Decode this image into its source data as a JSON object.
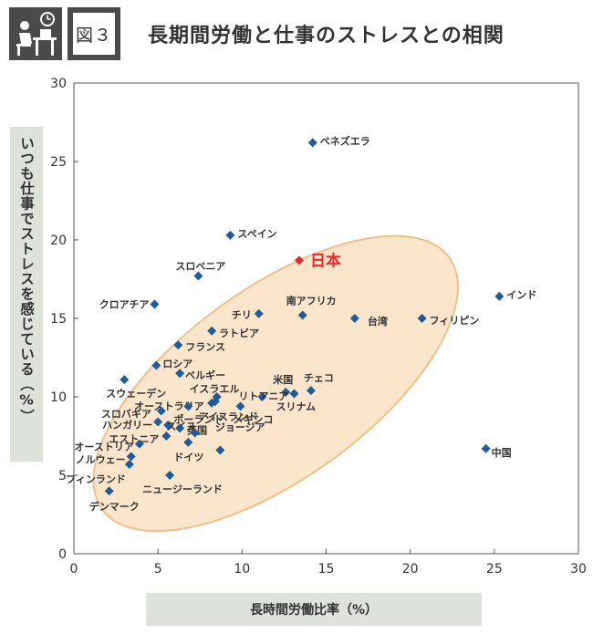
{
  "header": {
    "figure_label": "図３",
    "title": "長期間労働と仕事のストレスとの相関",
    "icon": "desk-worker-clock-icon"
  },
  "colors": {
    "marker": "#1e5c9b",
    "highlight": "#e32b2b",
    "ellipse_fill": "#fbe3c6",
    "ellipse_stroke": "#eec08a",
    "label_box": "#dde2db"
  },
  "chart_data": {
    "type": "scatter",
    "title": "長期間労働と仕事のストレスとの相関",
    "xlabel": "長時間労働比率（%）",
    "ylabel": "いつも仕事でストレスを感じている（%）",
    "xlim": [
      0,
      30
    ],
    "ylim": [
      0,
      30
    ],
    "xticks": [
      0,
      5,
      10,
      15,
      20,
      25,
      30
    ],
    "yticks": [
      0,
      5,
      10,
      15,
      20,
      25,
      30
    ],
    "grid": false,
    "highlight": "日本",
    "points": [
      {
        "label": "ベネズエラ",
        "x": 14.2,
        "y": 26.2
      },
      {
        "label": "スペイン",
        "x": 9.3,
        "y": 20.3
      },
      {
        "label": "日本",
        "x": 13.4,
        "y": 18.7
      },
      {
        "label": "スロベニア",
        "x": 7.4,
        "y": 17.7
      },
      {
        "label": "インド",
        "x": 25.3,
        "y": 16.4
      },
      {
        "label": "クロアチア",
        "x": 4.8,
        "y": 15.9
      },
      {
        "label": "南アフリカ",
        "x": 13.6,
        "y": 15.2
      },
      {
        "label": "チリ",
        "x": 11.0,
        "y": 15.3
      },
      {
        "label": "台湾",
        "x": 16.7,
        "y": 15.0
      },
      {
        "label": "フィリピン",
        "x": 20.7,
        "y": 15.0
      },
      {
        "label": "ラトビア",
        "x": 8.2,
        "y": 14.2
      },
      {
        "label": "フランス",
        "x": 6.2,
        "y": 13.3
      },
      {
        "label": "ロシア",
        "x": 4.9,
        "y": 12.0
      },
      {
        "label": "ベルギー",
        "x": 6.3,
        "y": 11.5
      },
      {
        "label": "スウェーデン",
        "x": 3.0,
        "y": 11.1
      },
      {
        "label": "米国",
        "x": 12.6,
        "y": 10.3
      },
      {
        "label": "チェコ",
        "x": 14.1,
        "y": 10.4
      },
      {
        "label": "イスラエル",
        "x": 8.5,
        "y": 10.0
      },
      {
        "label": "リトアニア",
        "x": 11.2,
        "y": 10.0
      },
      {
        "label": "オーストラリア",
        "x": 8.2,
        "y": 9.6
      },
      {
        "label": "スリナム",
        "x": 13.1,
        "y": 10.2
      },
      {
        "label": "メキシコ",
        "x": 9.9,
        "y": 9.4
      },
      {
        "label": "スロバキア",
        "x": 5.2,
        "y": 9.1
      },
      {
        "label": "ポーランド",
        "x": 6.8,
        "y": 9.4
      },
      {
        "label": "ジョージア",
        "x": 8.4,
        "y": 9.7
      },
      {
        "label": "ハンガリー",
        "x": 5.0,
        "y": 8.4
      },
      {
        "label": "スイス",
        "x": 5.6,
        "y": 8.2
      },
      {
        "label": "英国",
        "x": 6.3,
        "y": 8.0
      },
      {
        "label": "エストニア",
        "x": 5.5,
        "y": 7.5
      },
      {
        "label": "オーストリア",
        "x": 3.9,
        "y": 7.0
      },
      {
        "label": "ドイツ",
        "x": 6.8,
        "y": 7.1
      },
      {
        "label": "アイスランド",
        "x": 7.2,
        "y": 7.7
      },
      {
        "label": "中国",
        "x": 24.5,
        "y": 6.7
      },
      {
        "label": "ノルウェー",
        "x": 3.4,
        "y": 6.2
      },
      {
        "label": "フィンランド",
        "x": 3.3,
        "y": 5.7
      },
      {
        "label": "ニュージーランド",
        "x": 5.7,
        "y": 5.0
      },
      {
        "label": "デンマーク",
        "x": 2.1,
        "y": 4.0
      },
      {
        "label": "",
        "x": 8.7,
        "y": 6.6
      }
    ]
  }
}
